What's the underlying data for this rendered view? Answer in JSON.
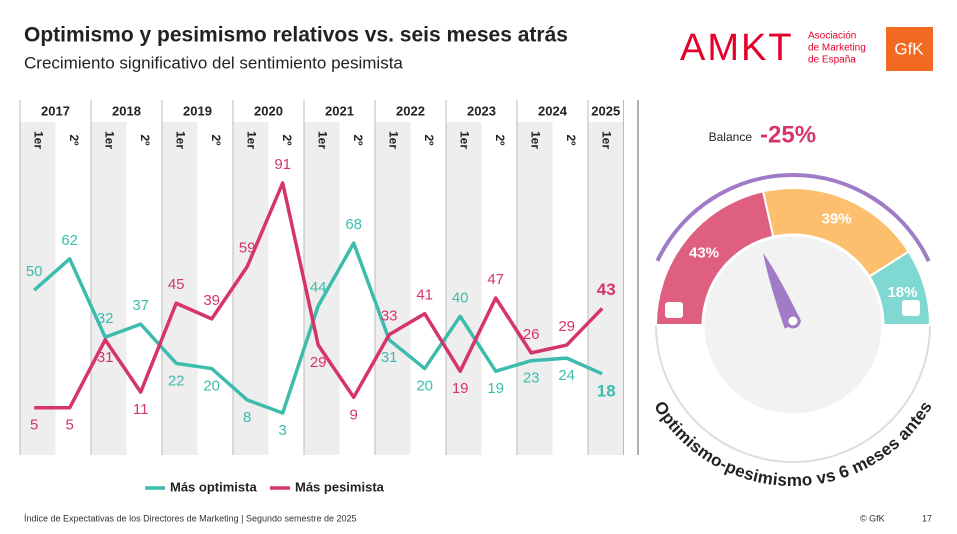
{
  "header": {
    "title": "Optimismo y pesimismo relativos vs. seis meses atrás",
    "subtitle": "Crecimiento significativo del sentimiento pesimista",
    "logo": "AMKT",
    "logo_text": [
      "Asociación",
      "de Marketing",
      "de España"
    ],
    "brand": "GfK"
  },
  "chart_data": [
    {
      "type": "line",
      "groups": [
        "2017",
        "2018",
        "2019",
        "2020",
        "2021",
        "2022",
        "2023",
        "2024",
        "2025"
      ],
      "categories": [
        "1er",
        "2º",
        "1er",
        "2º",
        "1er",
        "2º",
        "1er",
        "2º",
        "1er",
        "2º",
        "1er",
        "2º",
        "1er",
        "2º",
        "1er",
        "2º",
        "1er"
      ],
      "series": [
        {
          "name": "Más optimista",
          "color": "#3dbcae",
          "values": [
            50,
            62,
            32,
            37,
            22,
            20,
            8,
            3,
            44,
            68,
            31,
            20,
            40,
            19,
            23,
            24,
            18
          ]
        },
        {
          "name": "Más pesimista",
          "color": "#d6356a",
          "values": [
            5,
            5,
            31,
            11,
            45,
            39,
            59,
            91,
            29,
            9,
            33,
            41,
            19,
            47,
            26,
            29,
            43
          ]
        }
      ]
    },
    {
      "type": "gauge",
      "title": "Balance",
      "value": -25,
      "value_label": "-25%",
      "values": [
        43,
        39,
        18
      ],
      "value_labels": [
        "43%",
        "39%",
        "18%"
      ],
      "colors": [
        "#df5f80",
        "#fbbf6e",
        "#7fd8d2"
      ],
      "caption": "Optimismo-pesimismo vs 6 meses antes"
    }
  ],
  "footer": {
    "source": "Índice de Expectativas de los Directores de Marketing | Segundo semestre de 2025",
    "copyright": "© GfK",
    "page": "17"
  }
}
